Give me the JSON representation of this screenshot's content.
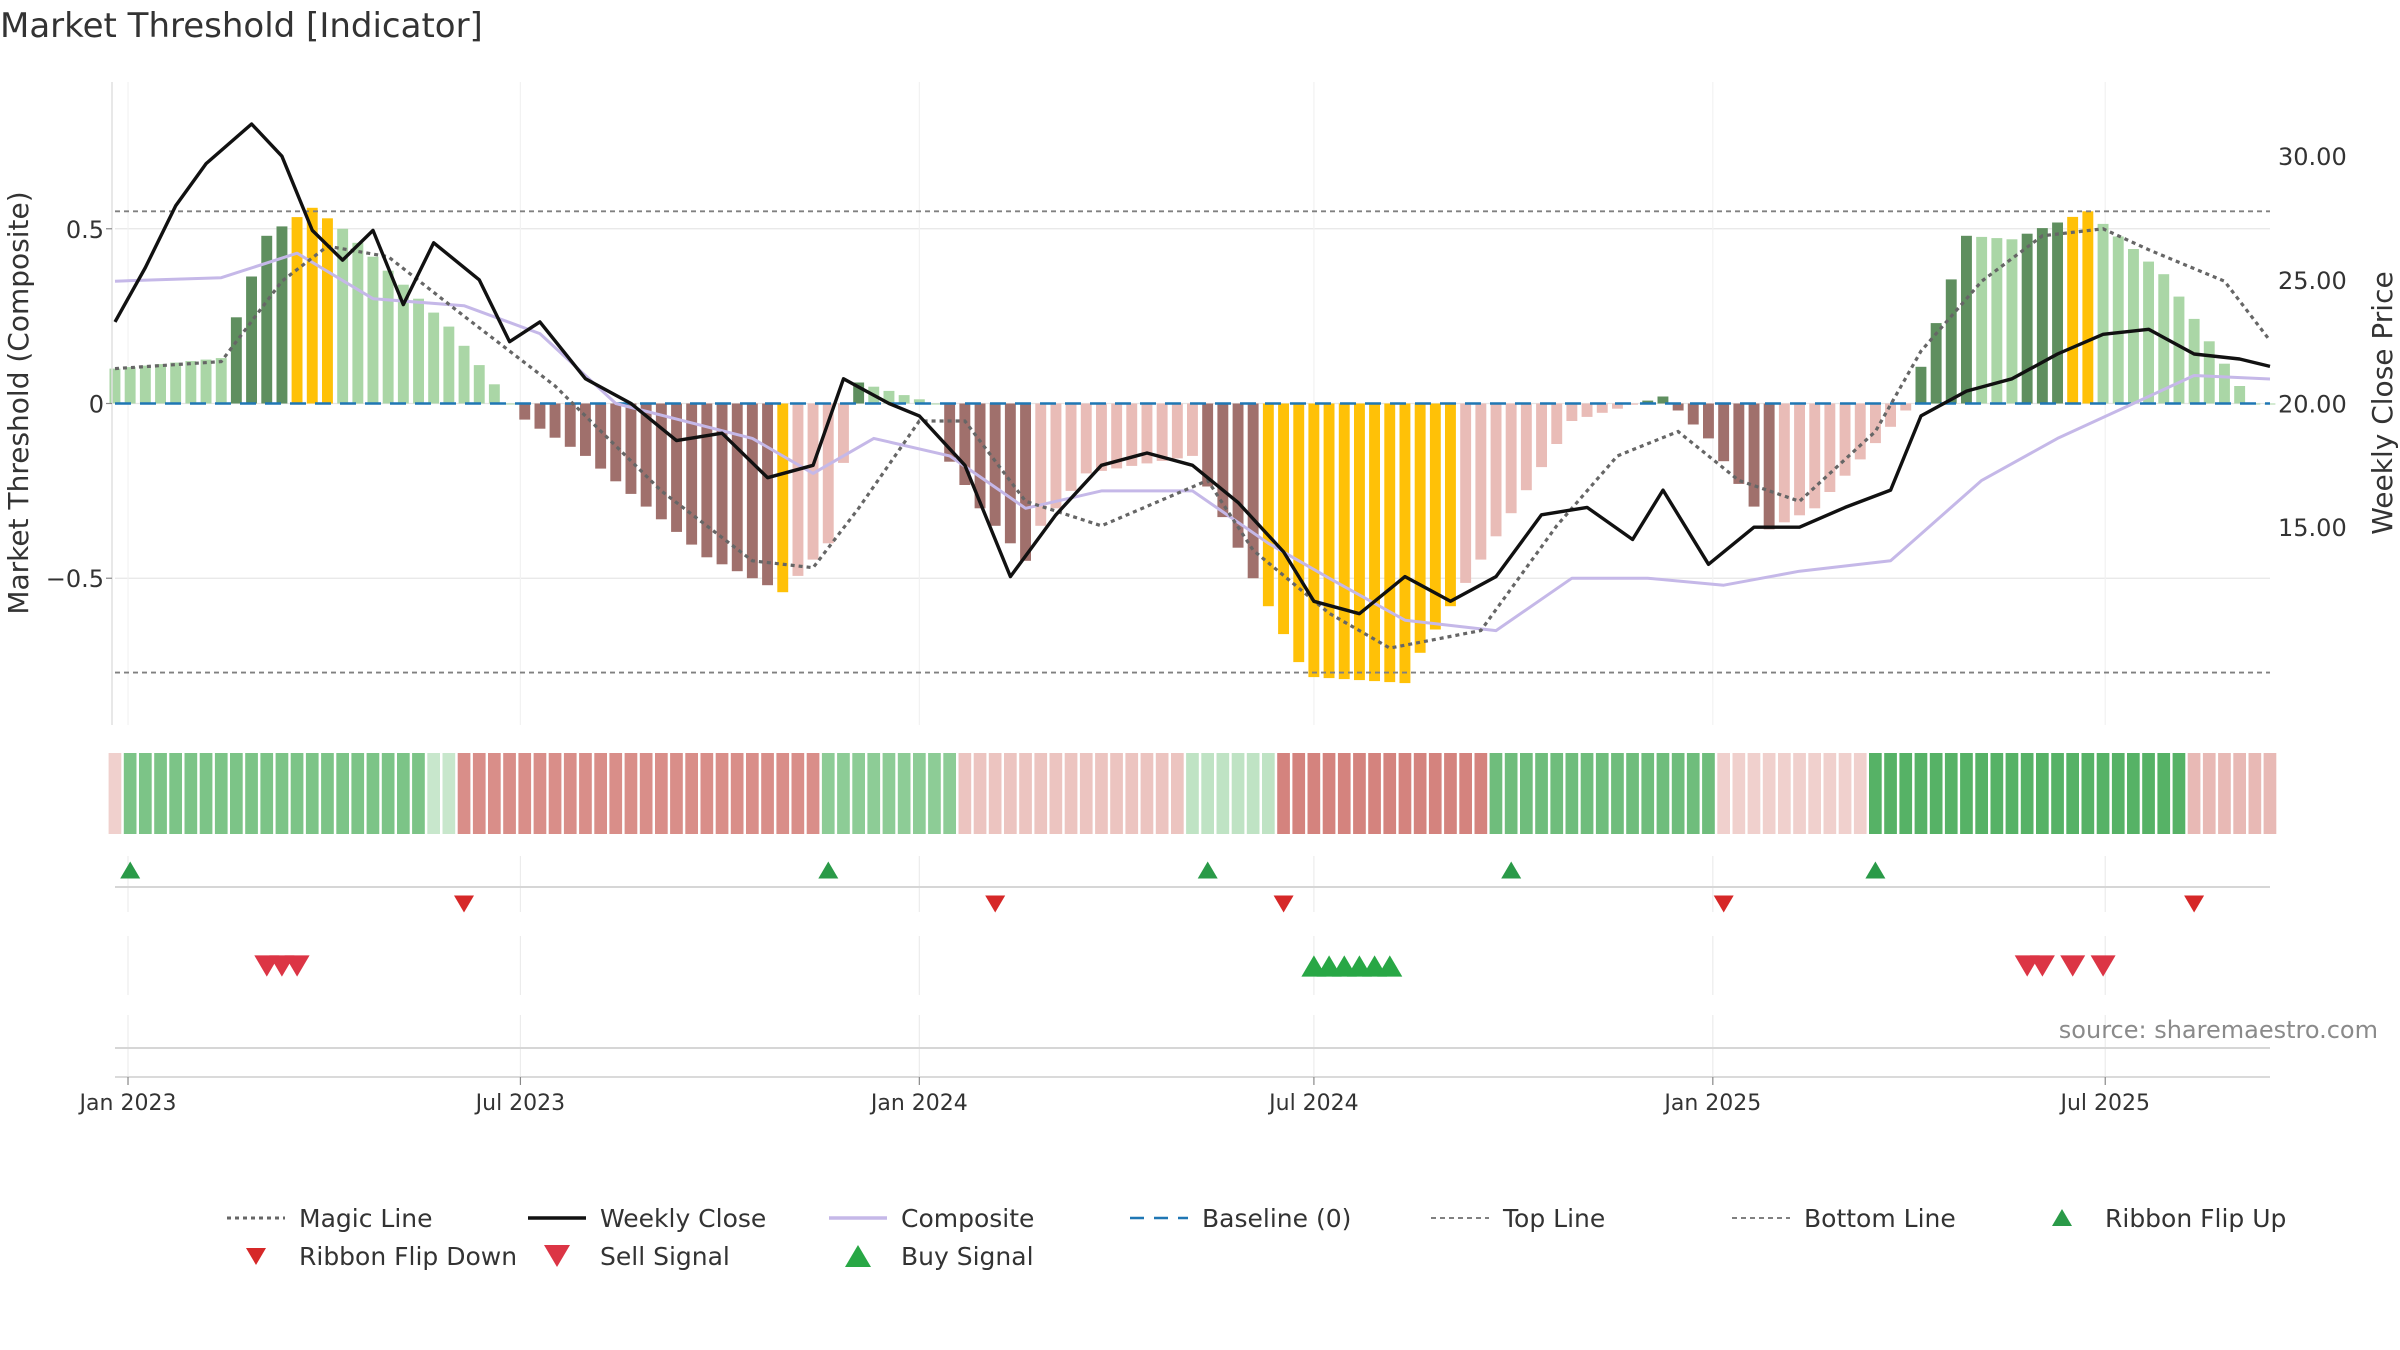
{
  "title": "Market Threshold [Indicator]",
  "source": "source: sharemaestro.com",
  "colors": {
    "text": "#333333",
    "grid": "#e6e6e6",
    "ref_line": "#808080",
    "magic": "#666666",
    "close": "#111111",
    "composite": "#c5b8e8",
    "baseline": "#1f77b4",
    "bar_green_dark": "#5f8f5f",
    "bar_green_light": "#aad6a6",
    "bar_red_dark": "#a0706c",
    "bar_red_light": "#e9bcb7",
    "bar_yellow": "#ffc107",
    "ribbon_green": "#43a852",
    "ribbon_red": "#cc6b66",
    "flip_up": "#2a9a48",
    "flip_down": "#d62828",
    "sell": "#dc3545",
    "buy": "#28a745"
  },
  "chart_data": {
    "type": "bar",
    "title": "Market Threshold [Indicator]",
    "xlabel": "",
    "ylabel_left": "Market Threshold (Composite)",
    "ylabel_right": "Weekly Close Price",
    "grid": true,
    "x_range": [
      "2022-12-26",
      "2025-09-15"
    ],
    "y_range_left": [
      -0.92,
      0.92
    ],
    "y_range_right": [
      7.0,
      33.0
    ],
    "y_ticks_left": [
      {
        "value": 0.5,
        "label": "0.5"
      },
      {
        "value": 0,
        "label": "0"
      },
      {
        "value": -0.5,
        "label": "−0.5"
      }
    ],
    "y_ticks_right": [
      {
        "value": 30,
        "label": "30.00"
      },
      {
        "value": 25,
        "label": "25.00"
      },
      {
        "value": 20,
        "label": "20.00"
      },
      {
        "value": 15,
        "label": "15.00"
      }
    ],
    "x_ticks": [
      {
        "date": "2023-01-01",
        "label": "Jan 2023"
      },
      {
        "date": "2023-07-01",
        "label": "Jul 2023"
      },
      {
        "date": "2024-01-01",
        "label": "Jan 2024"
      },
      {
        "date": "2024-07-01",
        "label": "Jul 2024"
      },
      {
        "date": "2025-01-01",
        "label": "Jan 2025"
      },
      {
        "date": "2025-07-01",
        "label": "Jul 2025"
      }
    ],
    "reference_lines": [
      {
        "name": "Top Line",
        "value": 0.55
      },
      {
        "name": "Bottom Line",
        "value": -0.77
      },
      {
        "name": "Baseline (0)",
        "value": 0
      }
    ],
    "bar_segments": [
      {
        "from": "2022-12-26",
        "to": "2023-02-13",
        "v1": 0.1,
        "v2": 0.13
      },
      {
        "from": "2023-02-13",
        "to": "2023-03-06",
        "v1": 0.13,
        "v2": 0.48
      },
      {
        "from": "2023-03-06",
        "to": "2023-03-27",
        "v1": 0.48,
        "v2": 0.56
      },
      {
        "from": "2023-03-27",
        "to": "2023-04-10",
        "v1": 0.56,
        "v2": 0.5
      },
      {
        "from": "2023-04-10",
        "to": "2023-05-29",
        "v1": 0.5,
        "v2": 0.22
      },
      {
        "from": "2023-05-29",
        "to": "2023-06-26",
        "v1": 0.22,
        "v2": 0.0
      },
      {
        "from": "2023-06-26",
        "to": "2023-07-31",
        "v1": -0.02,
        "v2": -0.15
      },
      {
        "from": "2023-07-31",
        "to": "2023-09-25",
        "v1": -0.15,
        "v2": -0.44
      },
      {
        "from": "2023-09-25",
        "to": "2023-10-30",
        "v1": -0.44,
        "v2": -0.54
      },
      {
        "from": "2023-10-30",
        "to": "2023-11-20",
        "v1": -0.54,
        "v2": -0.4
      },
      {
        "from": "2023-11-20",
        "to": "2023-12-04",
        "v1": -0.4,
        "v2": 0.06
      },
      {
        "from": "2023-12-04",
        "to": "2024-01-08",
        "v1": 0.06,
        "v2": 0.0
      },
      {
        "from": "2024-01-08",
        "to": "2024-01-29",
        "v1": -0.1,
        "v2": -0.3
      },
      {
        "from": "2024-01-29",
        "to": "2024-02-19",
        "v1": -0.3,
        "v2": -0.45
      },
      {
        "from": "2024-02-19",
        "to": "2024-03-18",
        "v1": -0.4,
        "v2": -0.2
      },
      {
        "from": "2024-03-18",
        "to": "2024-05-06",
        "v1": -0.2,
        "v2": -0.15
      },
      {
        "from": "2024-05-06",
        "to": "2024-06-03",
        "v1": -0.15,
        "v2": -0.5
      },
      {
        "from": "2024-06-03",
        "to": "2024-06-24",
        "v1": -0.5,
        "v2": -0.74
      },
      {
        "from": "2024-06-24",
        "to": "2024-08-12",
        "v1": -0.78,
        "v2": -0.8
      },
      {
        "from": "2024-08-12",
        "to": "2024-09-23",
        "v1": -0.78,
        "v2": -0.38
      },
      {
        "from": "2024-09-23",
        "to": "2024-10-28",
        "v1": -0.38,
        "v2": -0.05
      },
      {
        "from": "2024-10-28",
        "to": "2024-12-09",
        "v1": -0.05,
        "v2": 0.02
      },
      {
        "from": "2024-12-09",
        "to": "2024-12-30",
        "v1": 0.02,
        "v2": -0.1
      },
      {
        "from": "2024-12-30",
        "to": "2025-01-27",
        "v1": -0.1,
        "v2": -0.36
      },
      {
        "from": "2025-01-27",
        "to": "2025-02-17",
        "v1": -0.36,
        "v2": -0.3
      },
      {
        "from": "2025-02-17",
        "to": "2025-03-31",
        "v1": -0.3,
        "v2": -0.02
      },
      {
        "from": "2025-03-31",
        "to": "2025-04-28",
        "v1": -0.02,
        "v2": 0.48
      },
      {
        "from": "2025-04-28",
        "to": "2025-05-19",
        "v1": 0.48,
        "v2": 0.47
      },
      {
        "from": "2025-05-19",
        "to": "2025-06-23",
        "v1": 0.47,
        "v2": 0.55
      },
      {
        "from": "2025-06-23",
        "to": "2025-07-28",
        "v1": 0.55,
        "v2": 0.37
      },
      {
        "from": "2025-07-28",
        "to": "2025-09-01",
        "v1": 0.37,
        "v2": 0.05
      }
    ],
    "weekly_close_path": [
      [
        "2022-12-26",
        23.3
      ],
      [
        "2023-01-09",
        25.5
      ],
      [
        "2023-01-23",
        28.0
      ],
      [
        "2023-02-06",
        29.7
      ],
      [
        "2023-02-27",
        31.3
      ],
      [
        "2023-03-13",
        30.0
      ],
      [
        "2023-03-27",
        27.0
      ],
      [
        "2023-04-10",
        25.8
      ],
      [
        "2023-04-24",
        27.0
      ],
      [
        "2023-05-08",
        24.0
      ],
      [
        "2023-05-22",
        26.5
      ],
      [
        "2023-06-12",
        25.0
      ],
      [
        "2023-06-26",
        22.5
      ],
      [
        "2023-07-10",
        23.3
      ],
      [
        "2023-07-31",
        21.0
      ],
      [
        "2023-08-21",
        20.0
      ],
      [
        "2023-09-11",
        18.5
      ],
      [
        "2023-10-02",
        18.8
      ],
      [
        "2023-10-23",
        17.0
      ],
      [
        "2023-11-13",
        17.5
      ],
      [
        "2023-11-27",
        21.0
      ],
      [
        "2023-12-18",
        20.0
      ],
      [
        "2024-01-01",
        19.5
      ],
      [
        "2024-01-22",
        17.5
      ],
      [
        "2024-02-12",
        13.0
      ],
      [
        "2024-03-04",
        15.5
      ],
      [
        "2024-03-25",
        17.5
      ],
      [
        "2024-04-15",
        18.0
      ],
      [
        "2024-05-06",
        17.5
      ],
      [
        "2024-05-27",
        16.0
      ],
      [
        "2024-06-17",
        14.0
      ],
      [
        "2024-07-01",
        12.0
      ],
      [
        "2024-07-22",
        11.5
      ],
      [
        "2024-08-12",
        13.0
      ],
      [
        "2024-09-02",
        12.0
      ],
      [
        "2024-09-23",
        13.0
      ],
      [
        "2024-10-14",
        15.5
      ],
      [
        "2024-11-04",
        15.8
      ],
      [
        "2024-11-25",
        14.5
      ],
      [
        "2024-12-09",
        16.5
      ],
      [
        "2024-12-30",
        13.5
      ],
      [
        "2025-01-20",
        15.0
      ],
      [
        "2025-02-10",
        15.0
      ],
      [
        "2025-03-03",
        15.8
      ],
      [
        "2025-03-24",
        16.5
      ],
      [
        "2025-04-07",
        19.5
      ],
      [
        "2025-04-28",
        20.5
      ],
      [
        "2025-05-19",
        21.0
      ],
      [
        "2025-06-09",
        22.0
      ],
      [
        "2025-06-30",
        22.8
      ],
      [
        "2025-07-21",
        23.0
      ],
      [
        "2025-08-11",
        22.0
      ],
      [
        "2025-09-01",
        21.8
      ],
      [
        "2025-09-15",
        21.5
      ]
    ],
    "magic_line_path": [
      [
        "2022-12-26",
        0.1
      ],
      [
        "2023-02-13",
        0.12
      ],
      [
        "2023-03-13",
        0.35
      ],
      [
        "2023-04-03",
        0.45
      ],
      [
        "2023-05-01",
        0.42
      ],
      [
        "2023-06-05",
        0.25
      ],
      [
        "2023-07-17",
        0.05
      ],
      [
        "2023-09-04",
        -0.25
      ],
      [
        "2023-10-16",
        -0.45
      ],
      [
        "2023-11-13",
        -0.47
      ],
      [
        "2023-12-04",
        -0.3
      ],
      [
        "2024-01-01",
        -0.05
      ],
      [
        "2024-01-22",
        -0.05
      ],
      [
        "2024-02-19",
        -0.28
      ],
      [
        "2024-03-25",
        -0.35
      ],
      [
        "2024-05-13",
        -0.22
      ],
      [
        "2024-06-03",
        -0.42
      ],
      [
        "2024-07-08",
        -0.6
      ],
      [
        "2024-08-05",
        -0.7
      ],
      [
        "2024-09-16",
        -0.65
      ],
      [
        "2024-10-21",
        -0.35
      ],
      [
        "2024-11-18",
        -0.15
      ],
      [
        "2024-12-16",
        -0.08
      ],
      [
        "2025-01-13",
        -0.22
      ],
      [
        "2025-02-10",
        -0.28
      ],
      [
        "2025-03-17",
        -0.08
      ],
      [
        "2025-04-07",
        0.15
      ],
      [
        "2025-05-05",
        0.35
      ],
      [
        "2025-06-02",
        0.48
      ],
      [
        "2025-06-30",
        0.5
      ],
      [
        "2025-07-21",
        0.44
      ],
      [
        "2025-08-25",
        0.35
      ],
      [
        "2025-09-15",
        0.18
      ]
    ],
    "composite_path": [
      [
        "2022-12-26",
        0.35
      ],
      [
        "2023-02-13",
        0.36
      ],
      [
        "2023-03-20",
        0.43
      ],
      [
        "2023-04-24",
        0.3
      ],
      [
        "2023-06-05",
        0.28
      ],
      [
        "2023-07-10",
        0.2
      ],
      [
        "2023-08-14",
        0.0
      ],
      [
        "2023-10-16",
        -0.1
      ],
      [
        "2023-11-13",
        -0.2
      ],
      [
        "2023-12-11",
        -0.1
      ],
      [
        "2024-01-15",
        -0.15
      ],
      [
        "2024-02-19",
        -0.3
      ],
      [
        "2024-03-25",
        -0.25
      ],
      [
        "2024-05-06",
        -0.25
      ],
      [
        "2024-06-10",
        -0.4
      ],
      [
        "2024-07-08",
        -0.5
      ],
      [
        "2024-08-12",
        -0.62
      ],
      [
        "2024-09-23",
        -0.65
      ],
      [
        "2024-10-28",
        -0.5
      ],
      [
        "2024-12-02",
        -0.5
      ],
      [
        "2025-01-06",
        -0.52
      ],
      [
        "2025-02-10",
        -0.48
      ],
      [
        "2025-03-24",
        -0.45
      ],
      [
        "2025-05-05",
        -0.22
      ],
      [
        "2025-06-09",
        -0.1
      ],
      [
        "2025-07-14",
        0.0
      ],
      [
        "2025-08-11",
        0.08
      ],
      [
        "2025-09-15",
        0.07
      ]
    ],
    "ribbon_segments": [
      {
        "from": "2022-12-26",
        "to": "2023-01-02",
        "color": "#f0d0cd"
      },
      {
        "from": "2023-01-02",
        "to": "2023-05-22",
        "color": "#7cc487"
      },
      {
        "from": "2023-05-22",
        "to": "2023-06-05",
        "color": "#c8e7cc"
      },
      {
        "from": "2023-06-05",
        "to": "2023-11-20",
        "color": "#d98e89"
      },
      {
        "from": "2023-11-20",
        "to": "2024-01-22",
        "color": "#8dcc96"
      },
      {
        "from": "2024-01-22",
        "to": "2024-05-06",
        "color": "#ecc4c0"
      },
      {
        "from": "2024-05-06",
        "to": "2024-06-17",
        "color": "#bfe3c4"
      },
      {
        "from": "2024-06-17",
        "to": "2024-09-23",
        "color": "#d4837e"
      },
      {
        "from": "2024-09-23",
        "to": "2025-01-06",
        "color": "#6fbd7c"
      },
      {
        "from": "2025-01-06",
        "to": "2025-03-17",
        "color": "#f0d0cd"
      },
      {
        "from": "2025-03-17",
        "to": "2025-08-11",
        "color": "#56b266"
      },
      {
        "from": "2025-08-11",
        "to": "2025-09-15",
        "color": "#e8b9b5"
      }
    ],
    "ribbon_flip_up": [
      "2023-01-02",
      "2023-11-20",
      "2024-05-13",
      "2024-09-30",
      "2025-03-17"
    ],
    "ribbon_flip_down": [
      "2023-06-05",
      "2024-02-05",
      "2024-06-17",
      "2025-01-06",
      "2025-08-11"
    ],
    "sell_signals": [
      "2023-03-06",
      "2023-03-13",
      "2023-03-20",
      "2025-05-26",
      "2025-06-02",
      "2025-06-16",
      "2025-06-30"
    ],
    "buy_signals": [
      "2024-07-01",
      "2024-07-08",
      "2024-07-15",
      "2024-07-22",
      "2024-07-29",
      "2024-08-05"
    ],
    "legend": [
      {
        "name": "Magic Line",
        "kind": "line-dotted",
        "color": "#666666"
      },
      {
        "name": "Weekly Close",
        "kind": "line-solid",
        "color": "#111111"
      },
      {
        "name": "Composite",
        "kind": "line-solid-light",
        "color": "#c5b8e8"
      },
      {
        "name": "Baseline (0)",
        "kind": "line-dashed",
        "color": "#1f77b4"
      },
      {
        "name": "Top Line",
        "kind": "line-dotted-thin",
        "color": "#808080"
      },
      {
        "name": "Bottom Line",
        "kind": "line-dotted-thin",
        "color": "#808080"
      },
      {
        "name": "Ribbon Flip Up",
        "kind": "triangle-up",
        "color": "#2a9a48"
      },
      {
        "name": "Ribbon Flip Down",
        "kind": "triangle-down",
        "color": "#d62828"
      },
      {
        "name": "Sell Signal",
        "kind": "triangle-down-large",
        "color": "#dc3545"
      },
      {
        "name": "Buy Signal",
        "kind": "triangle-up-large",
        "color": "#28a745"
      }
    ]
  }
}
